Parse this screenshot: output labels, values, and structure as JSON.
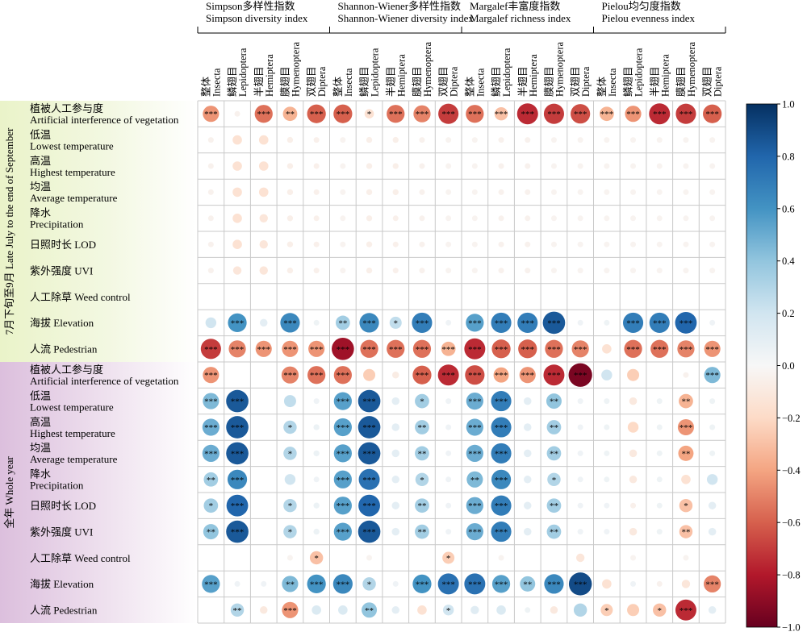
{
  "chart_data": {
    "type": "heatmap",
    "groups": [
      {
        "zh": "Simpson多样性指数",
        "en": "Simpson diversity index"
      },
      {
        "zh": "Shannon-Wiener多样性指数",
        "en": "Shannon-Wiener diversity index"
      },
      {
        "zh": "Margalef丰富度指数",
        "en": "Margalef richness index"
      },
      {
        "zh": "Pielou均匀度指数",
        "en": "Pielou evenness index"
      }
    ],
    "columns_per_group": [
      {
        "zh": "整体",
        "en": "Insecta"
      },
      {
        "zh": "鳞翅目",
        "en": "Lepidoptera"
      },
      {
        "zh": "半翅目",
        "en": "Hemiptera"
      },
      {
        "zh": "膜翅目",
        "en": "Hymenoptera"
      },
      {
        "zh": "双翅目",
        "en": "Diptera"
      }
    ],
    "periods": [
      {
        "label": "7月下旬至9月 Late July to the end of September"
      },
      {
        "label": "全年 Whole year"
      }
    ],
    "rows": [
      {
        "zh": "植被人工参与度",
        "en": "Artificial interference of vegetation"
      },
      {
        "zh": "低温",
        "en": "Lowest temperature"
      },
      {
        "zh": "高温",
        "en": "Highest temperature"
      },
      {
        "zh": "均温",
        "en": "Average temperature"
      },
      {
        "zh": "降水",
        "en": "Precipitation"
      },
      {
        "zh": "日照时长",
        "en": "LOD"
      },
      {
        "zh": "紫外强度",
        "en": "UVI"
      },
      {
        "zh": "人工除草",
        "en": "Weed control"
      },
      {
        "zh": "海拔",
        "en": "Elevation"
      },
      {
        "zh": "人流",
        "en": "Pedestrian"
      }
    ],
    "values": [
      [
        [
          -0.45,
          -0.04,
          -0.55,
          -0.35,
          -0.6,
          -0.6,
          -0.15,
          -0.55,
          -0.5,
          -0.7,
          -0.55,
          -0.3,
          -0.75,
          -0.7,
          -0.65,
          -0.35,
          -0.45,
          -0.75,
          -0.7,
          -0.6
        ],
        [
          -0.04,
          -0.15,
          -0.15,
          -0.06,
          -0.05,
          -0.03,
          -0.06,
          -0.06,
          -0.04,
          -0.03,
          -0.03,
          -0.04,
          -0.04,
          -0.03,
          -0.03,
          -0.03,
          -0.03,
          -0.03,
          -0.03,
          -0.03
        ],
        [
          -0.04,
          -0.15,
          -0.15,
          -0.06,
          -0.05,
          -0.03,
          -0.06,
          -0.06,
          -0.04,
          -0.03,
          -0.03,
          -0.04,
          -0.04,
          -0.03,
          -0.03,
          -0.03,
          -0.03,
          -0.03,
          -0.03,
          -0.03
        ],
        [
          -0.04,
          -0.15,
          -0.15,
          -0.06,
          -0.05,
          -0.03,
          -0.06,
          -0.06,
          -0.04,
          -0.03,
          -0.03,
          -0.04,
          -0.04,
          -0.03,
          -0.03,
          -0.03,
          -0.03,
          -0.03,
          -0.03,
          -0.03
        ],
        [
          -0.04,
          -0.15,
          -0.12,
          -0.06,
          -0.05,
          -0.03,
          -0.06,
          -0.05,
          -0.04,
          -0.03,
          -0.03,
          -0.04,
          -0.04,
          -0.03,
          -0.03,
          -0.03,
          -0.03,
          -0.03,
          -0.03,
          -0.03
        ],
        [
          -0.04,
          -0.15,
          -0.12,
          -0.06,
          -0.05,
          -0.03,
          -0.06,
          -0.05,
          -0.04,
          -0.03,
          -0.03,
          -0.04,
          -0.04,
          -0.03,
          -0.03,
          -0.03,
          -0.03,
          -0.03,
          -0.03,
          -0.03
        ],
        [
          -0.04,
          -0.12,
          -0.12,
          -0.06,
          -0.05,
          -0.03,
          -0.06,
          -0.05,
          -0.04,
          -0.03,
          -0.03,
          -0.04,
          -0.04,
          -0.03,
          -0.03,
          -0.03,
          -0.03,
          -0.03,
          -0.03,
          -0.03
        ],
        [
          0,
          0,
          0,
          0,
          0,
          0,
          0,
          0,
          0,
          0,
          0,
          0,
          0,
          0,
          0,
          0,
          0,
          0,
          0,
          0
        ],
        [
          0.2,
          0.6,
          0.1,
          0.65,
          0.05,
          0.35,
          0.65,
          0.25,
          0.7,
          0.04,
          0.55,
          0.7,
          0.7,
          0.85,
          0.04,
          0.05,
          0.7,
          0.7,
          0.8,
          0.04
        ],
        [
          -0.7,
          -0.5,
          -0.45,
          -0.45,
          -0.45,
          -0.85,
          -0.55,
          -0.55,
          -0.55,
          -0.35,
          -0.75,
          -0.6,
          -0.6,
          -0.55,
          -0.5,
          -0.15,
          -0.55,
          -0.55,
          -0.5,
          -0.45
        ]
      ],
      [
        [
          -0.45,
          0,
          0,
          -0.5,
          -0.55,
          -0.55,
          -0.25,
          -0.08,
          -0.6,
          -0.75,
          -0.65,
          -0.4,
          -0.45,
          -0.75,
          -0.95,
          0.2,
          -0.25,
          0,
          -0.04,
          0.45
        ],
        [
          0.45,
          0.85,
          0,
          0.25,
          0.04,
          0.55,
          0.85,
          0.1,
          0.35,
          0.04,
          0.5,
          0.7,
          0.1,
          0.4,
          0.04,
          0.05,
          -0.1,
          0.05,
          -0.35,
          0.05
        ],
        [
          0.5,
          0.85,
          0,
          0.3,
          0.06,
          0.55,
          0.85,
          0.1,
          0.35,
          0.04,
          0.5,
          0.7,
          0.1,
          0.35,
          0.04,
          0.05,
          -0.2,
          0.05,
          -0.45,
          0.05
        ],
        [
          0.5,
          0.85,
          0,
          0.3,
          0.06,
          0.55,
          0.85,
          0.1,
          0.35,
          0.04,
          0.5,
          0.7,
          0.1,
          0.35,
          0.04,
          0.05,
          -0.1,
          0.05,
          -0.4,
          0.05
        ],
        [
          0.35,
          0.65,
          0,
          0.2,
          0.04,
          0.55,
          0.75,
          0.1,
          0.3,
          0.04,
          0.45,
          0.65,
          0.1,
          0.3,
          0.04,
          0.05,
          -0.1,
          0.05,
          -0.15,
          0.2
        ],
        [
          0.35,
          0.8,
          0,
          0.3,
          0.06,
          0.55,
          0.8,
          0.1,
          0.35,
          0.04,
          0.5,
          0.7,
          0.1,
          0.35,
          0.04,
          0.04,
          -0.05,
          0.05,
          -0.3,
          0.1
        ],
        [
          0.4,
          0.85,
          0,
          0.3,
          0.06,
          0.55,
          0.85,
          0.1,
          0.35,
          0.04,
          0.5,
          0.7,
          0.1,
          0.35,
          0.04,
          0.04,
          -0.1,
          0.05,
          -0.3,
          0.1
        ],
        [
          0,
          0,
          0,
          -0.03,
          -0.3,
          0,
          -0.03,
          0,
          0,
          -0.25,
          0,
          -0.03,
          0,
          0,
          -0.12,
          0,
          -0.03,
          0,
          -0.03,
          0
        ],
        [
          0.55,
          0.04,
          0.04,
          0.45,
          0.6,
          0.65,
          0.3,
          0.04,
          0.6,
          0.75,
          0.75,
          0.55,
          0.4,
          0.65,
          0.9,
          -0.15,
          0.04,
          -0.04,
          -0.12,
          -0.5
        ],
        [
          0,
          0.3,
          -0.1,
          -0.45,
          0.15,
          0.15,
          0.4,
          0.1,
          -0.15,
          0.2,
          0.12,
          0.15,
          0.05,
          -0.1,
          0.3,
          -0.25,
          -0.25,
          -0.3,
          -0.75,
          0.1
        ]
      ]
    ],
    "significance": [
      [
        [
          "***",
          "",
          "***",
          "**",
          "***",
          "***",
          "*",
          "***",
          "***",
          "***",
          "***",
          "***",
          "***",
          "***",
          "***",
          "***",
          "***",
          "***",
          "***",
          "***"
        ],
        [
          "",
          "",
          "",
          "",
          "",
          "",
          "",
          "",
          "",
          "",
          "",
          "",
          "",
          "",
          "",
          "",
          "",
          "",
          "",
          ""
        ],
        [
          "",
          "",
          "",
          "",
          "",
          "",
          "",
          "",
          "",
          "",
          "",
          "",
          "",
          "",
          "",
          "",
          "",
          "",
          "",
          ""
        ],
        [
          "",
          "",
          "",
          "",
          "",
          "",
          "",
          "",
          "",
          "",
          "",
          "",
          "",
          "",
          "",
          "",
          "",
          "",
          "",
          ""
        ],
        [
          "",
          "",
          "",
          "",
          "",
          "",
          "",
          "",
          "",
          "",
          "",
          "",
          "",
          "",
          "",
          "",
          "",
          "",
          "",
          ""
        ],
        [
          "",
          "",
          "",
          "",
          "",
          "",
          "",
          "",
          "",
          "",
          "",
          "",
          "",
          "",
          "",
          "",
          "",
          "",
          "",
          ""
        ],
        [
          "",
          "",
          "",
          "",
          "",
          "",
          "",
          "",
          "",
          "",
          "",
          "",
          "",
          "",
          "",
          "",
          "",
          "",
          "",
          ""
        ],
        [
          "",
          "",
          "",
          "",
          "",
          "",
          "",
          "",
          "",
          "",
          "",
          "",
          "",
          "",
          "",
          "",
          "",
          "",
          "",
          ""
        ],
        [
          "",
          "***",
          "",
          "***",
          "",
          "**",
          "***",
          "*",
          "***",
          "",
          "***",
          "***",
          "***",
          "***",
          "",
          "",
          "***",
          "***",
          "***",
          ""
        ],
        [
          "***",
          "***",
          "***",
          "***",
          "***",
          "***",
          "***",
          "***",
          "***",
          "***",
          "***",
          "***",
          "***",
          "***",
          "***",
          "",
          "***",
          "***",
          "***",
          "***"
        ]
      ],
      [
        [
          "***",
          "",
          "",
          "***",
          "***",
          "***",
          "",
          "",
          "***",
          "***",
          "***",
          "***",
          "***",
          "***",
          "***",
          "",
          "",
          "",
          "",
          "***"
        ],
        [
          "***",
          "***",
          "",
          "",
          "",
          "***",
          "***",
          "",
          "*",
          "",
          "***",
          "***",
          "",
          "**",
          "",
          "",
          "",
          "",
          "**",
          ""
        ],
        [
          "***",
          "***",
          "",
          "*",
          "",
          "***",
          "***",
          "",
          "**",
          "",
          "***",
          "***",
          "",
          "**",
          "",
          "",
          "",
          "",
          "***",
          ""
        ],
        [
          "***",
          "***",
          "",
          "*",
          "",
          "***",
          "***",
          "",
          "**",
          "",
          "***",
          "***",
          "",
          "**",
          "",
          "",
          "",
          "",
          "**",
          ""
        ],
        [
          "**",
          "***",
          "",
          "",
          "",
          "***",
          "***",
          "",
          "*",
          "",
          "**",
          "***",
          "",
          "*",
          "",
          "",
          "",
          "",
          "",
          ""
        ],
        [
          "*",
          "***",
          "",
          "*",
          "",
          "***",
          "***",
          "",
          "**",
          "",
          "***",
          "***",
          "",
          "**",
          "",
          "",
          "",
          "",
          "*",
          ""
        ],
        [
          "**",
          "***",
          "",
          "*",
          "",
          "***",
          "***",
          "",
          "**",
          "",
          "***",
          "***",
          "",
          "**",
          "",
          "",
          "",
          "",
          "**",
          ""
        ],
        [
          "",
          "",
          "",
          "",
          "*",
          "",
          "",
          "",
          "",
          "*",
          "",
          "",
          "",
          "",
          "",
          "",
          "",
          "",
          "",
          ""
        ],
        [
          "***",
          "",
          "",
          "**",
          "***",
          "***",
          "*",
          "",
          "***",
          "***",
          "***",
          "***",
          "**",
          "***",
          "***",
          "",
          "",
          "",
          "",
          "***"
        ],
        [
          "",
          "**",
          "",
          "***",
          "",
          "",
          "**",
          "",
          "",
          "*",
          "",
          "",
          "",
          "",
          "",
          "*",
          "",
          "*",
          "***",
          ""
        ]
      ]
    ],
    "colorbar": {
      "min": -1.0,
      "max": 1.0,
      "ticks": [
        "1.0",
        "0.8",
        "0.6",
        "0.4",
        "0.2",
        "0.0",
        "−0.2",
        "−0.4",
        "−0.6",
        "−0.8",
        "−1.0"
      ]
    },
    "colors": {
      "strong_negative": "#67001f",
      "neutral": "#f7f7f7",
      "strong_positive": "#053061"
    }
  }
}
